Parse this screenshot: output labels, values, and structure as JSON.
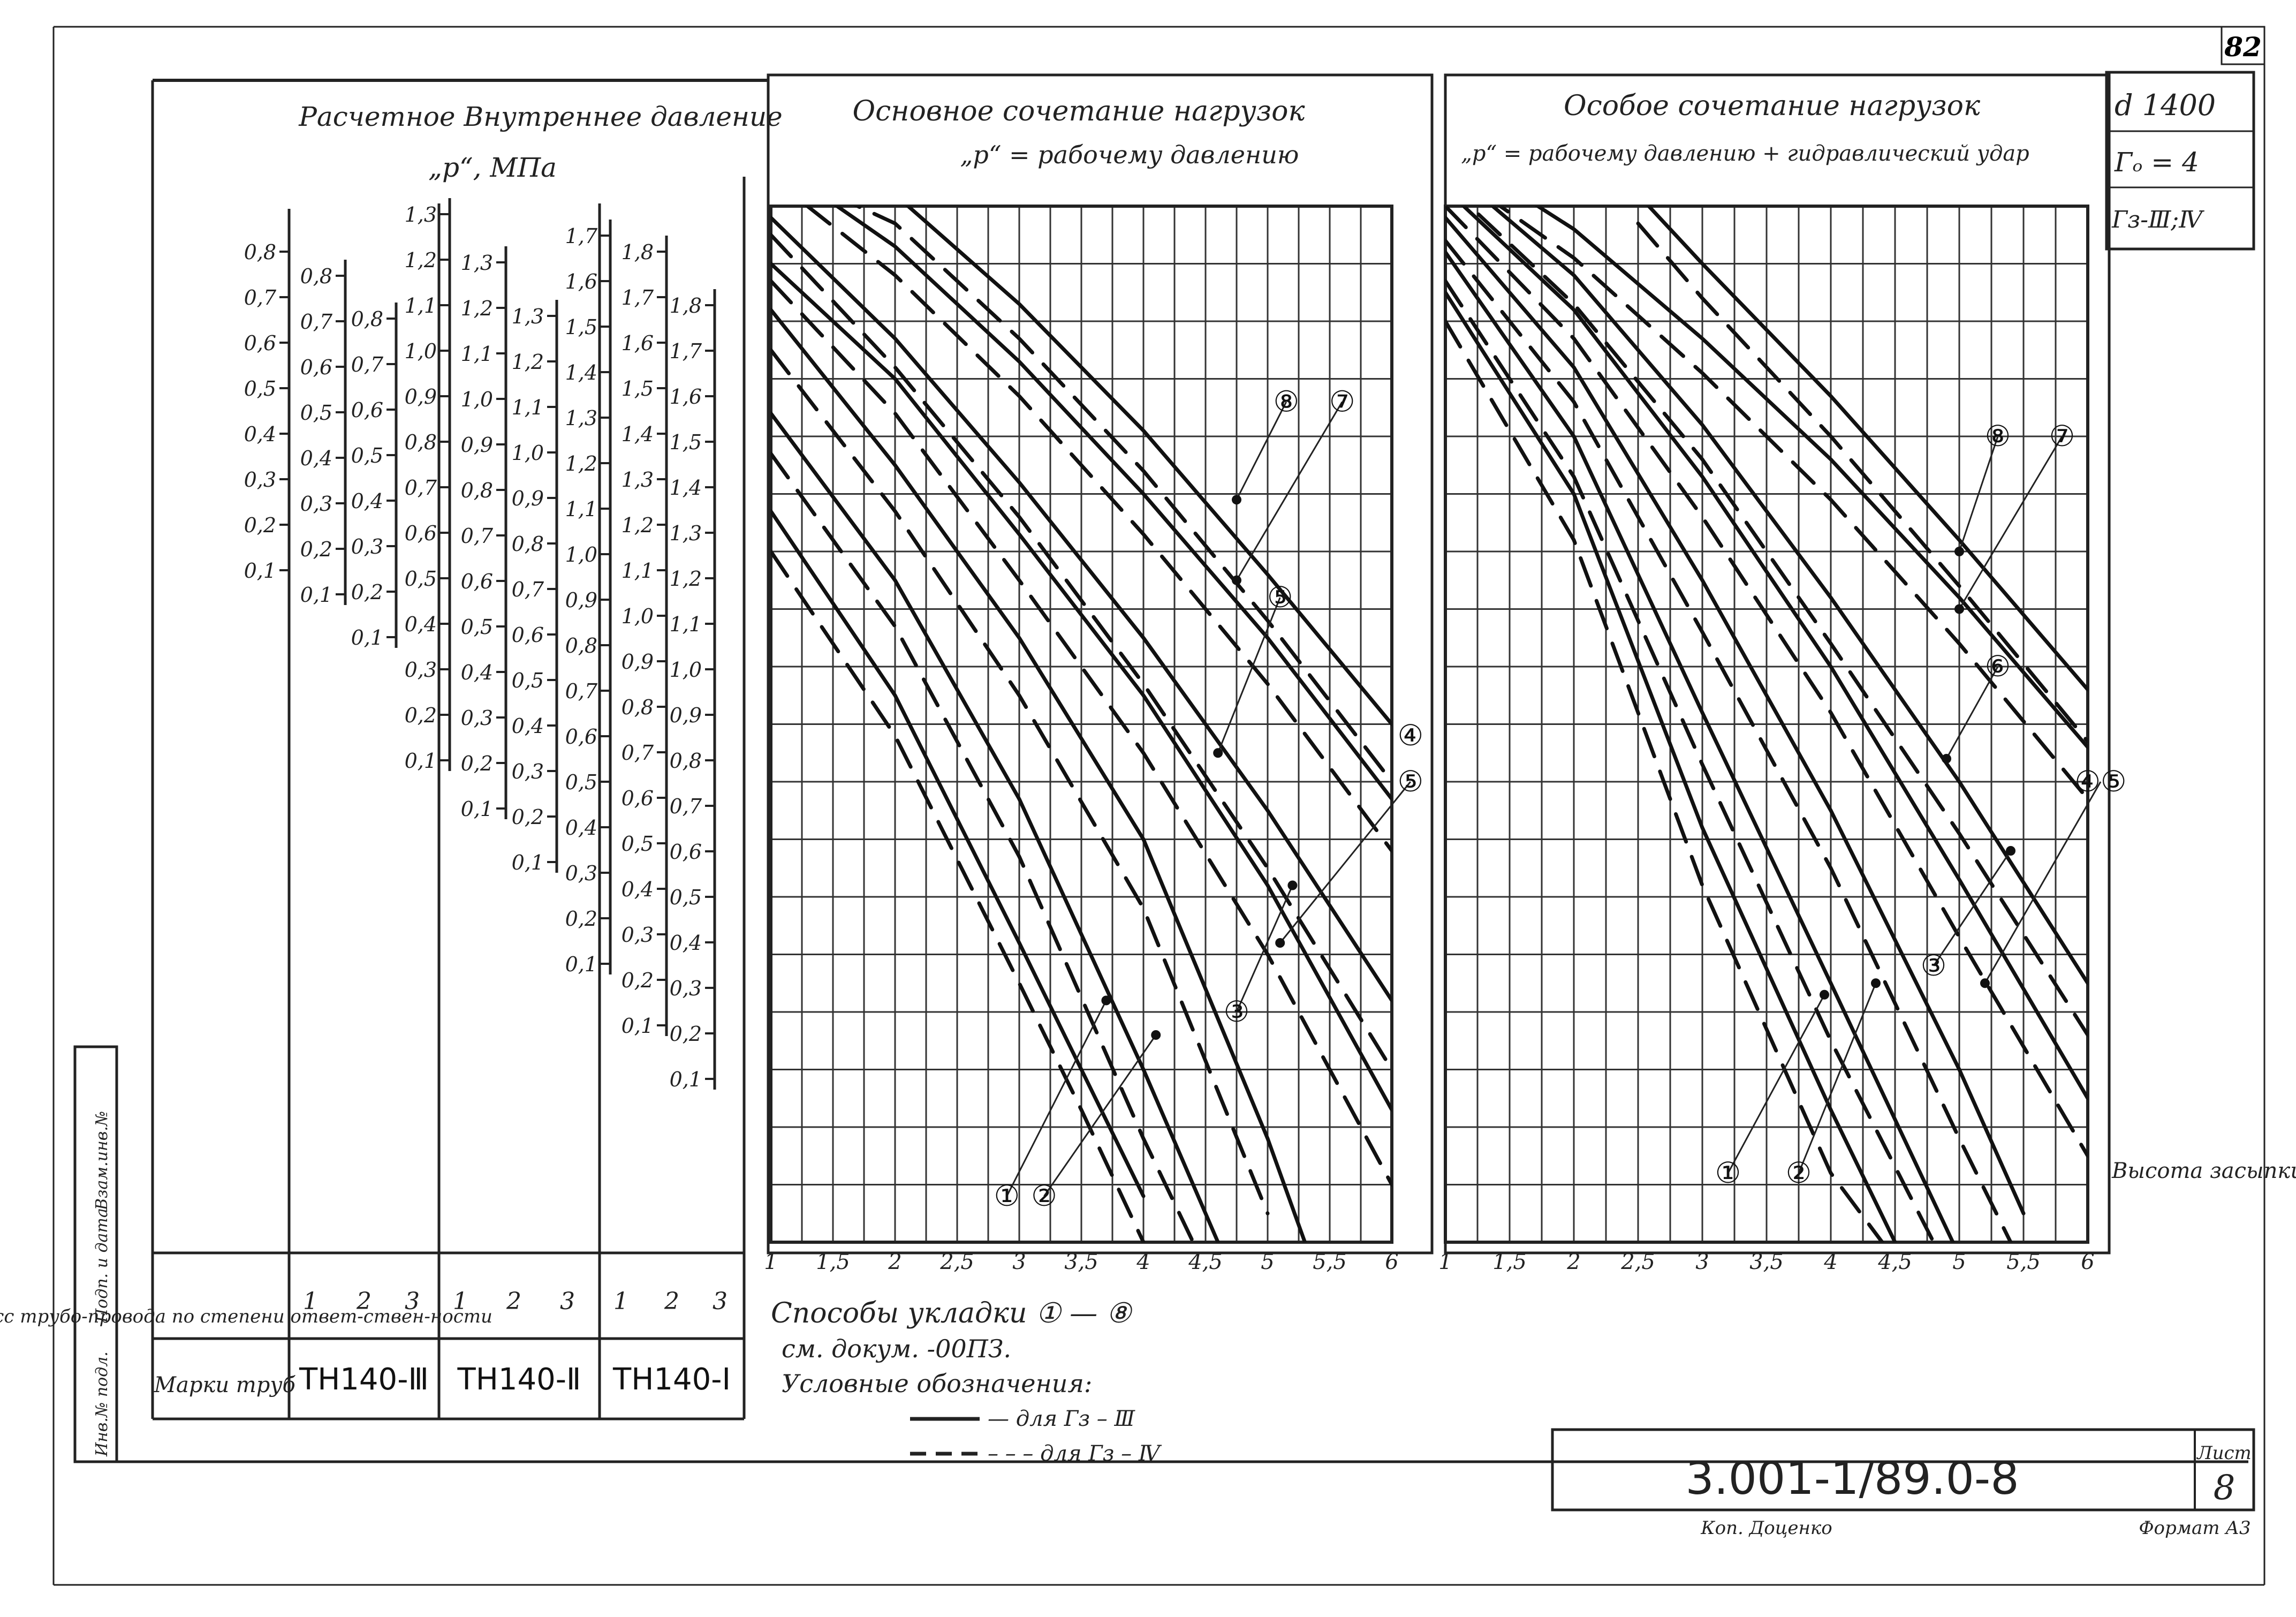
{
  "sheet": {
    "page_number": "82",
    "designation": "3.001-1/89.0-8",
    "sheet_label": "Лист",
    "sheet_number": "8",
    "copied_by": "Коп. Доценко",
    "format": "Формат А3",
    "side_stamp": [
      "Инв.№ подл.",
      "Подп. и дата",
      "Взам.инв.№"
    ]
  },
  "params": {
    "diameter": "d 1400",
    "g_o": "Гₒ = 4",
    "g_z": "Гз-Ⅲ;Ⅳ"
  },
  "pressure_panel": {
    "title_line1": "Расчетное Внутреннее давление",
    "title_line2": "„р“, МПа",
    "class_label": "Класс трубо-провода по степени ответ-ствен-ности",
    "marks_label": "Марки труб",
    "marks": [
      "ТН140-Ⅲ",
      "ТН140-Ⅱ",
      "ТН140-Ⅰ"
    ],
    "class_numbers": [
      "1",
      "2",
      "3",
      "1",
      "2",
      "3",
      "1",
      "2",
      "3"
    ],
    "scales": [
      [
        "0,8",
        "0,7",
        "0,6",
        "0,5",
        "0,4",
        "0,3",
        "0,2",
        "0,1"
      ],
      [
        "0,8",
        "0,7",
        "0,6",
        "0,5",
        "0,4",
        "0,3",
        "0,2",
        "0,1"
      ],
      [
        "0,8",
        "0,7",
        "0,6",
        "0,5",
        "0,4",
        "0,3",
        "0,2",
        "0,1"
      ],
      [
        "1,3",
        "1,2",
        "1,1",
        "1,0",
        "0,9",
        "0,8",
        "0,7",
        "0,6",
        "0,5",
        "0,4",
        "0,3",
        "0,2",
        "0,1"
      ],
      [
        "1,3",
        "1,2",
        "1,1",
        "1,0",
        "0,9",
        "0,8",
        "0,7",
        "0,6",
        "0,5",
        "0,4",
        "0,3",
        "0,2",
        "0,1"
      ],
      [
        "1,3",
        "1,2",
        "1,1",
        "1,0",
        "0,9",
        "0,8",
        "0,7",
        "0,6",
        "0,5",
        "0,4",
        "0,3",
        "0,2",
        "0,1"
      ],
      [
        "1,7",
        "1,6",
        "1,5",
        "1,4",
        "1,3",
        "1,2",
        "1,1",
        "1,0",
        "0,9",
        "0,8",
        "0,7",
        "0,6",
        "0,5",
        "0,4",
        "0,3",
        "0,2",
        "0,1"
      ],
      [
        "1,8",
        "1,7",
        "1,6",
        "1,5",
        "1,4",
        "1,3",
        "1,2",
        "1,1",
        "1,0",
        "0,9",
        "0,8",
        "0,7",
        "0,6",
        "0,5",
        "0,4",
        "0,3",
        "0,2",
        "0,1"
      ],
      [
        "1,8",
        "1,7",
        "1,6",
        "1,5",
        "1,4",
        "1,3",
        "1,2",
        "1,1",
        "1,0",
        "0,9",
        "0,8",
        "0,7",
        "0,6",
        "0,5",
        "0,4",
        "0,3",
        "0,2",
        "0,1"
      ]
    ]
  },
  "legend": {
    "methods": "Способы укладки ① — ⑧",
    "see_doc": "см. докум. -00ПЗ.",
    "conventions": "Условные обозначения:",
    "solid": "— для Гз – Ⅲ",
    "dashed": "– – – для Гз – Ⅳ"
  },
  "yaxis_label": "Высота засыпки труб „h“, м",
  "chart_data": [
    {
      "type": "line",
      "title": "Основное сочетание нагрузок",
      "subtitle": "„р“ = рабочему давлению",
      "xlabel": "Высота засыпки труб „h“, м",
      "ylabel": "„р“, МПа",
      "x_ticks": [
        "1",
        "1,5",
        "2",
        "2,5",
        "3",
        "3,5",
        "4",
        "4,5",
        "5",
        "5,5",
        "6"
      ],
      "xlim": [
        1,
        6
      ],
      "ylim": [
        0,
        1.8
      ],
      "grid": true,
      "series": [
        {
          "name": "①",
          "style": "solid",
          "x": [
            1,
            2,
            3,
            3.5,
            4
          ],
          "y": [
            1.27,
            0.95,
            0.52,
            0.3,
            0.08
          ]
        },
        {
          "name": "①",
          "style": "dashed",
          "x": [
            1,
            2,
            3,
            3.5,
            4
          ],
          "y": [
            1.2,
            0.88,
            0.45,
            0.23,
            0.0
          ]
        },
        {
          "name": "②",
          "style": "solid",
          "x": [
            1,
            2,
            3,
            4,
            4.6
          ],
          "y": [
            1.44,
            1.15,
            0.77,
            0.3,
            0.0
          ]
        },
        {
          "name": "②",
          "style": "dashed",
          "x": [
            1,
            2,
            3,
            4,
            4.4
          ],
          "y": [
            1.37,
            1.07,
            0.67,
            0.18,
            0.0
          ]
        },
        {
          "name": "③",
          "style": "solid",
          "x": [
            1,
            2,
            3,
            4,
            5,
            5.3
          ],
          "y": [
            1.62,
            1.35,
            1.05,
            0.7,
            0.18,
            0.0
          ]
        },
        {
          "name": "③",
          "style": "dashed",
          "x": [
            1,
            2,
            3,
            4,
            5
          ],
          "y": [
            1.55,
            1.27,
            0.95,
            0.58,
            0.05
          ]
        },
        {
          "name": "⑤",
          "style": "solid",
          "x": [
            1,
            2,
            3,
            4,
            5,
            6
          ],
          "y": [
            1.7,
            1.5,
            1.23,
            0.95,
            0.62,
            0.23
          ]
        },
        {
          "name": "⑤",
          "style": "dashed",
          "x": [
            1,
            2,
            3,
            4,
            5,
            6
          ],
          "y": [
            1.67,
            1.44,
            1.15,
            0.85,
            0.5,
            0.1
          ]
        },
        {
          "name": "④",
          "style": "solid",
          "x": [
            1,
            2,
            3,
            4,
            5,
            6
          ],
          "y": [
            1.78,
            1.57,
            1.32,
            1.05,
            0.75,
            0.42
          ]
        },
        {
          "name": "④",
          "style": "dashed",
          "x": [
            1,
            2,
            3,
            4,
            5,
            6
          ],
          "y": [
            1.75,
            1.52,
            1.26,
            0.97,
            0.65,
            0.3
          ]
        },
        {
          "name": "⑧",
          "style": "solid",
          "x": [
            1,
            2,
            3,
            4,
            5,
            6
          ],
          "y": [
            1.88,
            1.73,
            1.53,
            1.3,
            1.05,
            0.77
          ]
        },
        {
          "name": "⑧",
          "style": "dashed",
          "x": [
            1,
            2,
            3,
            4,
            5,
            6
          ],
          "y": [
            1.85,
            1.68,
            1.47,
            1.23,
            0.97,
            0.68
          ]
        },
        {
          "name": "⑦",
          "style": "solid",
          "x": [
            1.5,
            2,
            3,
            4,
            5,
            6
          ],
          "y": [
            1.86,
            1.82,
            1.63,
            1.41,
            1.16,
            0.9
          ]
        },
        {
          "name": "⑦",
          "style": "dashed",
          "x": [
            1.5,
            2,
            3,
            4,
            5,
            6
          ],
          "y": [
            1.82,
            1.77,
            1.57,
            1.34,
            1.08,
            0.8
          ]
        }
      ],
      "callouts": [
        {
          "text": "①",
          "x": 2.9,
          "y": 0.08,
          "to_x": 3.7,
          "to_y": 0.42
        },
        {
          "text": "②",
          "x": 3.2,
          "y": 0.08,
          "to_x": 4.1,
          "to_y": 0.36
        },
        {
          "text": "③",
          "x": 4.75,
          "y": 0.4,
          "to_x": 5.2,
          "to_y": 0.62
        },
        {
          "text": "⑤",
          "x": 5.1,
          "y": 1.12,
          "to_x": 4.6,
          "to_y": 0.85
        },
        {
          "text": "⑧",
          "x": 5.15,
          "y": 1.46,
          "to_x": 4.75,
          "to_y": 1.29
        },
        {
          "text": "⑦",
          "x": 5.6,
          "y": 1.46,
          "to_x": 4.75,
          "to_y": 1.15
        },
        {
          "text": "④",
          "x": 6.15,
          "y": 0.88
        },
        {
          "text": "⑤",
          "x": 6.15,
          "y": 0.8,
          "to_x": 5.1,
          "to_y": 0.52
        }
      ]
    },
    {
      "type": "line",
      "title": "Особое сочетание нагрузок",
      "subtitle": "„р“ = рабочему давлению + гидравлический удар",
      "xlabel": "Высота засыпки труб „h“, м",
      "ylabel": "„р“, МПа",
      "x_ticks": [
        "1",
        "1,5",
        "2",
        "2,5",
        "3",
        "3,5",
        "4",
        "4,5",
        "5",
        "5,5",
        "6"
      ],
      "xlim": [
        1,
        6
      ],
      "ylim": [
        0,
        1.8
      ],
      "grid": true,
      "series": [
        {
          "name": "①",
          "style": "solid",
          "x": [
            1,
            2,
            3,
            4,
            4.5
          ],
          "y": [
            1.65,
            1.3,
            0.72,
            0.23,
            0.0
          ]
        },
        {
          "name": "①",
          "style": "dashed",
          "x": [
            1,
            2,
            3,
            4,
            4.4
          ],
          "y": [
            1.6,
            1.22,
            0.62,
            0.12,
            0.0
          ]
        },
        {
          "name": "②",
          "style": "solid",
          "x": [
            1,
            2,
            3,
            4,
            4.95
          ],
          "y": [
            1.72,
            1.4,
            0.92,
            0.45,
            0.0
          ]
        },
        {
          "name": "②",
          "style": "dashed",
          "x": [
            1,
            2,
            3,
            4,
            4.8
          ],
          "y": [
            1.67,
            1.33,
            0.83,
            0.35,
            0.0
          ]
        },
        {
          "name": "③",
          "style": "solid",
          "x": [
            1,
            2,
            3,
            4,
            5,
            5.5
          ],
          "y": [
            1.78,
            1.52,
            1.15,
            0.75,
            0.3,
            0.05
          ]
        },
        {
          "name": "③",
          "style": "dashed",
          "x": [
            1,
            2,
            3,
            4,
            5,
            5.4
          ],
          "y": [
            1.74,
            1.46,
            1.06,
            0.65,
            0.18,
            0.0
          ]
        },
        {
          "name": "⑤",
          "style": "solid",
          "x": [
            1,
            2,
            3,
            4,
            5,
            6
          ],
          "y": [
            1.83,
            1.62,
            1.33,
            1.0,
            0.63,
            0.25
          ]
        },
        {
          "name": "⑤",
          "style": "dashed",
          "x": [
            1,
            2,
            3,
            4,
            5,
            6
          ],
          "y": [
            1.8,
            1.57,
            1.26,
            0.92,
            0.53,
            0.15
          ]
        },
        {
          "name": "④",
          "style": "solid",
          "x": [
            1,
            2,
            3,
            4,
            5,
            6
          ],
          "y": [
            1.87,
            1.68,
            1.42,
            1.12,
            0.8,
            0.45
          ]
        },
        {
          "name": "④",
          "style": "dashed",
          "x": [
            1,
            2,
            3,
            4,
            5,
            6
          ],
          "y": [
            1.84,
            1.63,
            1.36,
            1.04,
            0.71,
            0.36
          ]
        },
        {
          "name": "⑧",
          "style": "solid",
          "x": [
            1.3,
            2,
            3,
            4,
            5,
            6
          ],
          "y": [
            1.86,
            1.76,
            1.57,
            1.36,
            1.12,
            0.86
          ]
        },
        {
          "name": "⑧",
          "style": "dashed",
          "x": [
            1.3,
            2,
            3,
            4,
            5,
            6
          ],
          "y": [
            1.82,
            1.71,
            1.51,
            1.29,
            1.04,
            0.77
          ]
        },
        {
          "name": "⑦",
          "style": "solid",
          "x": [
            2.5,
            3,
            4,
            5,
            6
          ],
          "y": [
            1.82,
            1.7,
            1.47,
            1.22,
            0.96
          ]
        },
        {
          "name": "⑦",
          "style": "dashed",
          "x": [
            2.5,
            3,
            4,
            5,
            6
          ],
          "y": [
            1.77,
            1.64,
            1.4,
            1.14,
            0.87
          ]
        }
      ],
      "callouts": [
        {
          "text": "①",
          "x": 3.2,
          "y": 0.12,
          "to_x": 3.95,
          "to_y": 0.43
        },
        {
          "text": "②",
          "x": 3.75,
          "y": 0.12,
          "to_x": 4.35,
          "to_y": 0.45
        },
        {
          "text": "③",
          "x": 4.8,
          "y": 0.48,
          "to_x": 5.4,
          "to_y": 0.68
        },
        {
          "text": "⑥",
          "x": 5.3,
          "y": 1.0,
          "to_x": 4.9,
          "to_y": 0.84
        },
        {
          "text": "⑧",
          "x": 5.3,
          "y": 1.4,
          "to_x": 5.0,
          "to_y": 1.2
        },
        {
          "text": "⑦",
          "x": 5.8,
          "y": 1.4,
          "to_x": 5.0,
          "to_y": 1.1
        },
        {
          "text": "④⑤",
          "x": 6.1,
          "y": 0.8,
          "to_x": 5.2,
          "to_y": 0.45
        }
      ]
    }
  ]
}
